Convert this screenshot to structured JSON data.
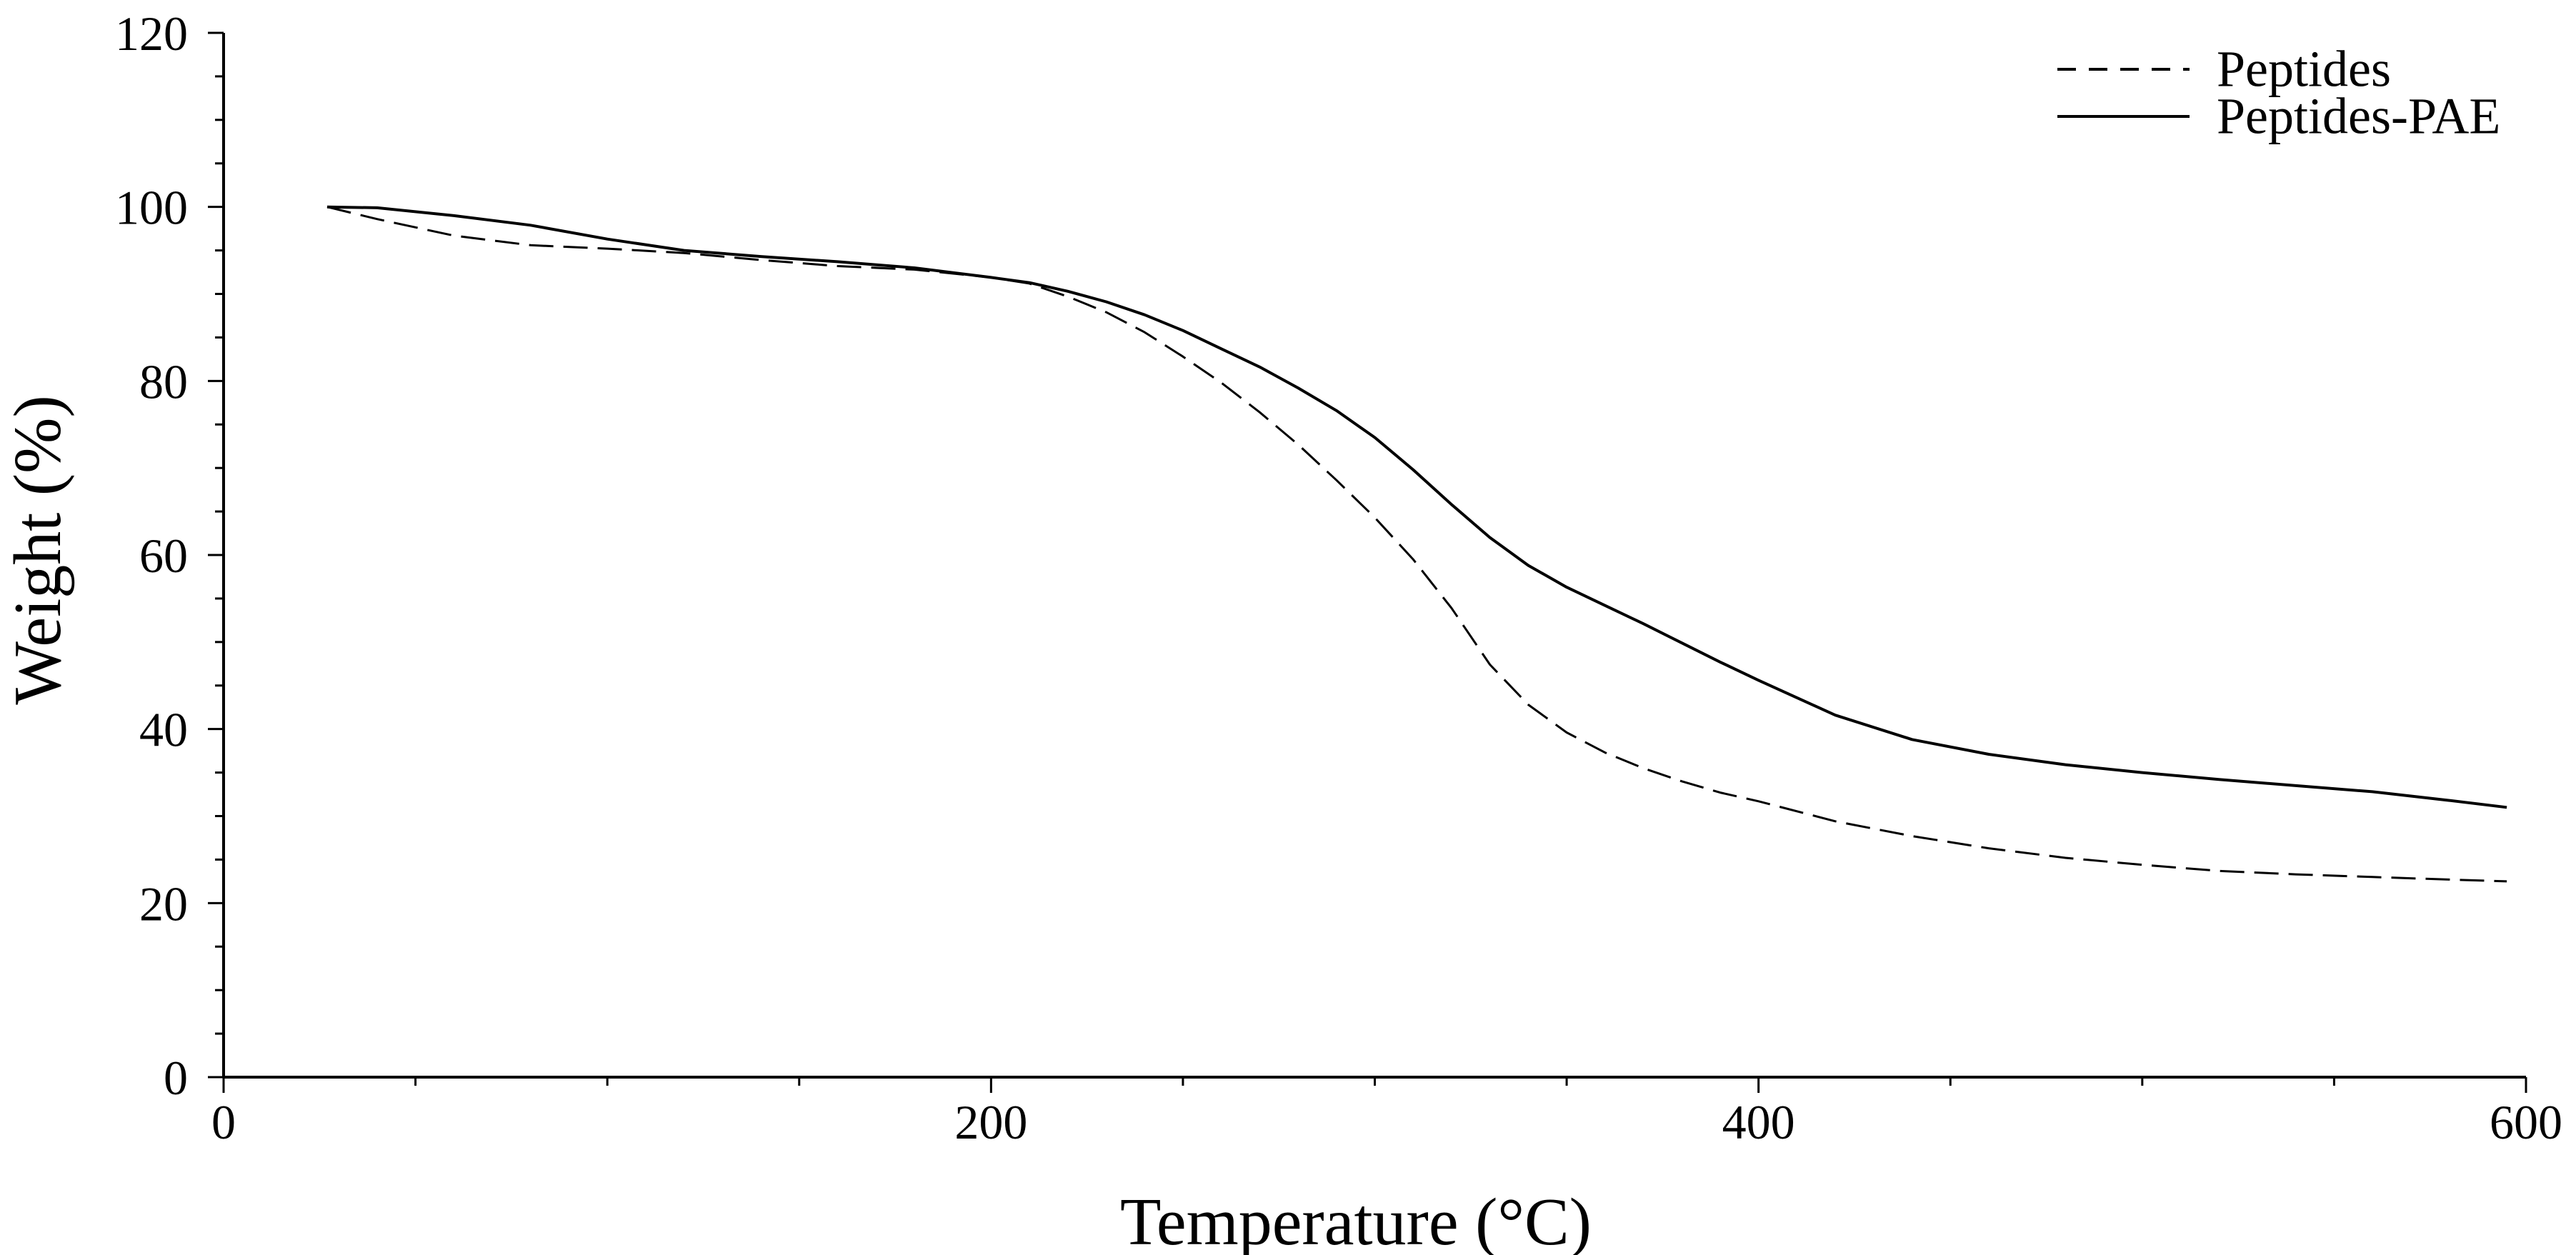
{
  "chart_data": {
    "type": "line",
    "title": "",
    "xlabel": "Temperature (°C)",
    "ylabel": "Weight (%)",
    "xlim": [
      0,
      600
    ],
    "ylim": [
      0,
      120
    ],
    "x_major_ticks": [
      0,
      200,
      400,
      600
    ],
    "x_minor_step": 50,
    "y_major_ticks": [
      0,
      20,
      40,
      60,
      80,
      100,
      120
    ],
    "y_minor_step": 5,
    "grid": false,
    "legend_position": "top-right",
    "series": [
      {
        "name": "Peptides",
        "style": "dashed",
        "color": "#000000",
        "x": [
          27,
          40,
          60,
          80,
          100,
          120,
          140,
          160,
          180,
          200,
          210,
          220,
          230,
          240,
          250,
          260,
          270,
          280,
          290,
          300,
          310,
          320,
          330,
          340,
          350,
          360,
          370,
          380,
          390,
          400,
          420,
          440,
          460,
          480,
          500,
          520,
          540,
          560,
          580,
          595
        ],
        "y": [
          100,
          98.6,
          96.7,
          95.6,
          95.2,
          94.7,
          93.9,
          93.2,
          92.8,
          91.9,
          91.2,
          89.7,
          87.9,
          85.6,
          82.8,
          79.8,
          76.4,
          72.7,
          68.6,
          64.3,
          59.5,
          53.9,
          47.4,
          42.8,
          39.6,
          37.3,
          35.5,
          34.0,
          32.7,
          31.7,
          29.4,
          27.7,
          26.3,
          25.2,
          24.4,
          23.7,
          23.3,
          23.0,
          22.7,
          22.5
        ]
      },
      {
        "name": "Peptides-PAE",
        "style": "solid",
        "color": "#000000",
        "x": [
          27,
          40,
          60,
          80,
          100,
          120,
          140,
          160,
          180,
          200,
          210,
          220,
          230,
          240,
          250,
          260,
          270,
          280,
          290,
          300,
          310,
          320,
          330,
          340,
          350,
          360,
          370,
          380,
          390,
          400,
          420,
          440,
          460,
          480,
          500,
          520,
          540,
          560,
          580,
          595
        ],
        "y": [
          100,
          99.9,
          99.0,
          97.9,
          96.3,
          95.0,
          94.3,
          93.7,
          93.0,
          91.9,
          91.3,
          90.3,
          89.1,
          87.6,
          85.8,
          83.7,
          81.6,
          79.2,
          76.6,
          73.5,
          69.8,
          65.8,
          62.0,
          58.8,
          56.3,
          54.2,
          52.1,
          49.9,
          47.7,
          45.6,
          41.6,
          38.8,
          37.1,
          35.9,
          35.0,
          34.2,
          33.5,
          32.8,
          31.8,
          31.0
        ]
      }
    ]
  }
}
